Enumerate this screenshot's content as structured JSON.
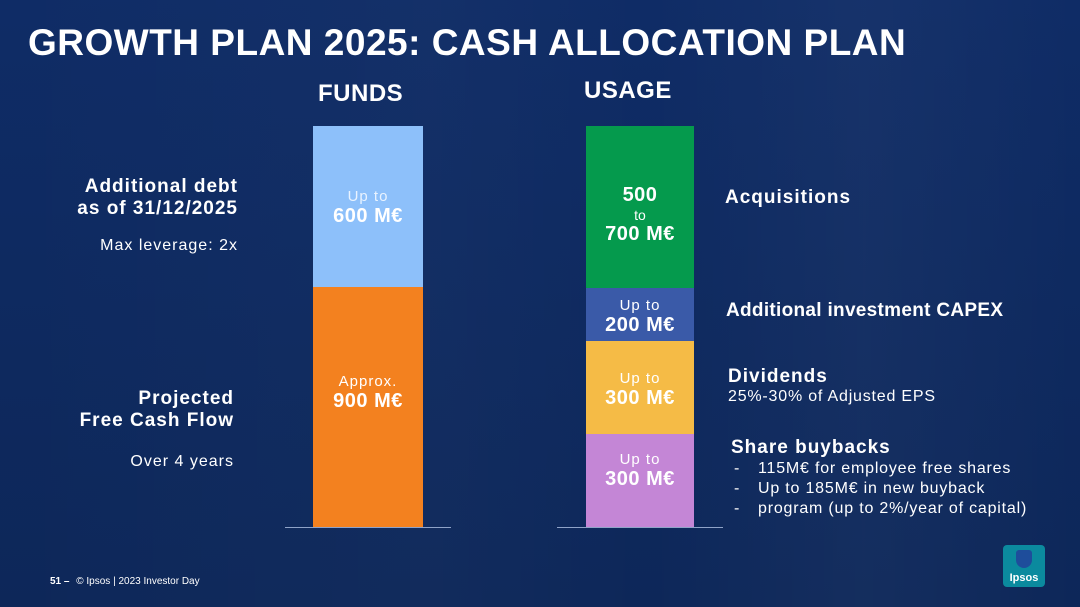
{
  "title": "GROWTH PLAN 2025: CASH ALLOCATION PLAN",
  "colors": {
    "background": "#0e2a62",
    "debt": "#8dc0fa",
    "fcf": "#f3811f",
    "acquisitions": "#059a4d",
    "capex": "#3a5aa8",
    "dividends": "#f5bb46",
    "buybacks": "#c486d6"
  },
  "chart_data": [
    {
      "type": "bar",
      "title": "FUNDS",
      "unit": "M€",
      "stack": [
        {
          "key": "debt",
          "label": "Additional debt as of 31/12/2025",
          "value": 600,
          "text_line1": "Up to",
          "text_line2": "600 M€"
        },
        {
          "key": "fcf",
          "label": "Projected Free Cash Flow",
          "value": 900,
          "text_line1": "Approx.",
          "text_line2": "900 M€"
        }
      ]
    },
    {
      "type": "bar",
      "title": "USAGE",
      "unit": "M€",
      "stack": [
        {
          "key": "acquisitions",
          "label": "Acquisitions",
          "value_min": 500,
          "value_max": 700,
          "value": 600,
          "text_line1": "500",
          "text_mid": "to",
          "text_line2": "700 M€"
        },
        {
          "key": "capex",
          "label": "Additional investment CAPEX",
          "value": 200,
          "text_line1": "Up to",
          "text_line2": "200 M€"
        },
        {
          "key": "dividends",
          "label": "Dividends",
          "value": 300,
          "text_line1": "Up to",
          "text_line2": "300 M€"
        },
        {
          "key": "buybacks",
          "label": "Share buybacks",
          "value": 300,
          "text_line1": "Up to",
          "text_line2": "300 M€"
        }
      ]
    }
  ],
  "left_labels": {
    "debt_line1": "Additional debt",
    "debt_line2": "as of 31/12/2025",
    "leverage": "Max leverage: 2x",
    "fcf_line1": "Projected",
    "fcf_line2": "Free Cash Flow",
    "fcf_period": "Over 4 years"
  },
  "right_labels": {
    "acquisitions": "Acquisitions",
    "capex": "Additional investment CAPEX",
    "dividends": "Dividends",
    "dividends_sub": "25%-30% of Adjusted EPS",
    "buybacks": "Share buybacks",
    "buyback_items": [
      "115M€ for employee free shares",
      "Up to 185M€ in new buyback",
      "program (up to 2%/year of capital)"
    ]
  },
  "footer": {
    "page": "51 –",
    "text": "© Ipsos | 2023 Investor Day"
  },
  "logo_text": "Ipsos"
}
